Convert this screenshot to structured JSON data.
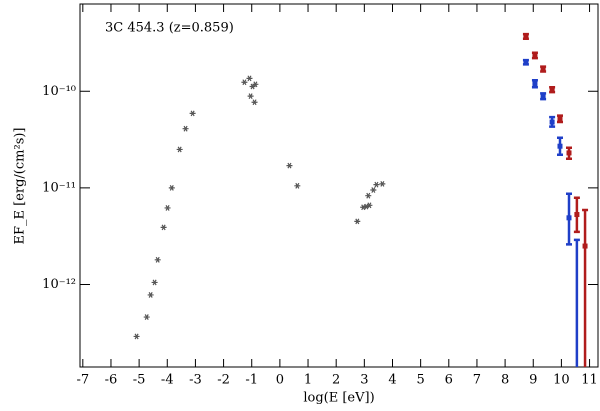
{
  "chart_data": {
    "type": "scatter",
    "annotation": "3C 454.3 (z=0.859)",
    "x_label": "log(E [eV])",
    "y_label": "EF_E [erg/(cm²s)]",
    "xlim": [
      -7.1,
      11.3
    ],
    "ylim": [
      1.4e-13,
      8e-10
    ],
    "log_y": true,
    "xticks": [
      -7,
      -6,
      -5,
      -4,
      -3,
      -2,
      -1,
      0,
      1,
      2,
      3,
      4,
      5,
      6,
      7,
      8,
      9,
      10,
      11
    ],
    "yticks": [
      {
        "value": 1e-12,
        "label": "10⁻¹²"
      },
      {
        "value": 1e-11,
        "label": "10⁻¹¹"
      },
      {
        "value": 1e-10,
        "label": "10⁻¹⁰"
      }
    ],
    "series": [
      {
        "color": "#555555",
        "marker": "star",
        "x": [
          -5.09,
          -4.73,
          -4.59,
          -4.45,
          -4.34,
          -4.13,
          -3.99,
          -3.84,
          -3.56,
          -3.35,
          -3.1,
          -1.26,
          -1.08,
          -0.97,
          -0.87,
          -1.04,
          -0.9,
          0.34,
          0.62,
          2.75,
          2.96,
          3.07,
          3.18,
          3.14,
          3.32,
          3.43,
          3.64
        ],
        "values": [
          2.9e-13,
          4.6e-13,
          7.8e-13,
          1.05e-12,
          1.8e-12,
          3.9e-12,
          6.2e-12,
          1e-11,
          2.5e-11,
          4.1e-11,
          5.9e-11,
          1.24e-10,
          1.36e-10,
          1.12e-10,
          1.18e-10,
          8.9e-11,
          7.7e-11,
          1.7e-11,
          1.05e-11,
          4.5e-12,
          6.3e-12,
          6.4e-12,
          6.6e-12,
          8.3e-12,
          9.5e-12,
          1.08e-11,
          1.1e-11
        ]
      },
      {
        "color": "#1f3fc8",
        "marker": "square",
        "x": [
          8.74,
          9.06,
          9.35,
          9.67,
          9.95,
          10.27,
          10.55
        ],
        "values": [
          2e-10,
          1.2e-10,
          8.9e-11,
          4.8e-11,
          2.7e-11,
          4.9e-12,
          null
        ],
        "y_low": [
          1.9e-10,
          1.1e-10,
          8.3e-11,
          4.3e-11,
          2.2e-11,
          2.6e-12,
          1e-13
        ],
        "y_high": [
          2.1e-10,
          1.3e-10,
          9.5e-11,
          5.4e-11,
          3.3e-11,
          8.7e-12,
          2.9e-12
        ]
      },
      {
        "color": "#b01c1c",
        "marker": "square",
        "x": [
          8.74,
          9.06,
          9.35,
          9.67,
          9.95,
          10.27,
          10.55,
          10.84
        ],
        "values": [
          3.7e-10,
          2.35e-10,
          1.7e-10,
          1.05e-10,
          5.2e-11,
          2.3e-11,
          5.3e-12,
          2.5e-12
        ],
        "y_low": [
          3.5e-10,
          2.2e-10,
          1.6e-10,
          9.8e-11,
          4.8e-11,
          2e-11,
          3.5e-12,
          1e-13
        ],
        "y_high": [
          3.9e-10,
          2.5e-10,
          1.8e-10,
          1.1e-10,
          5.6e-11,
          2.6e-11,
          7.9e-12,
          5.9e-12
        ]
      }
    ]
  }
}
